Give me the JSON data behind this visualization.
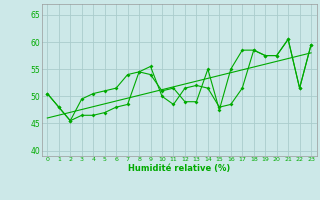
{
  "xlabel": "Humidité relative (%)",
  "xlim": [
    -0.5,
    23.5
  ],
  "ylim": [
    39,
    67
  ],
  "yticks": [
    40,
    45,
    50,
    55,
    60,
    65
  ],
  "xticks": [
    0,
    1,
    2,
    3,
    4,
    5,
    6,
    7,
    8,
    9,
    10,
    11,
    12,
    13,
    14,
    15,
    16,
    17,
    18,
    19,
    20,
    21,
    22,
    23
  ],
  "bg_color": "#cce8e8",
  "grid_color": "#aacccc",
  "line_color": "#00aa00",
  "line1_x": [
    0,
    1,
    2,
    3,
    4,
    5,
    6,
    7,
    8,
    9,
    10,
    11,
    12,
    13,
    14,
    15,
    16,
    17,
    18,
    19,
    20,
    21,
    22,
    23
  ],
  "line1_y": [
    50.5,
    48.0,
    45.5,
    49.5,
    50.5,
    51.0,
    51.5,
    54.0,
    54.5,
    55.5,
    50.0,
    48.5,
    51.5,
    52.0,
    51.5,
    48.0,
    48.5,
    51.5,
    58.5,
    57.5,
    57.5,
    60.5,
    51.5,
    59.5
  ],
  "line2_x": [
    0,
    1,
    2,
    3,
    4,
    5,
    6,
    7,
    8,
    9,
    10,
    11,
    12,
    13,
    14,
    15,
    16,
    17,
    18,
    19,
    20,
    21,
    22,
    23
  ],
  "line2_y": [
    50.5,
    48.0,
    45.5,
    46.5,
    46.5,
    47.0,
    48.0,
    48.5,
    54.5,
    54.0,
    51.0,
    51.5,
    49.0,
    49.0,
    55.0,
    47.5,
    55.0,
    58.5,
    58.5,
    57.5,
    57.5,
    60.5,
    51.5,
    59.5
  ],
  "trend_x": [
    0,
    23
  ],
  "trend_y": [
    46.0,
    58.0
  ],
  "figsize": [
    3.2,
    2.0
  ],
  "dpi": 100
}
